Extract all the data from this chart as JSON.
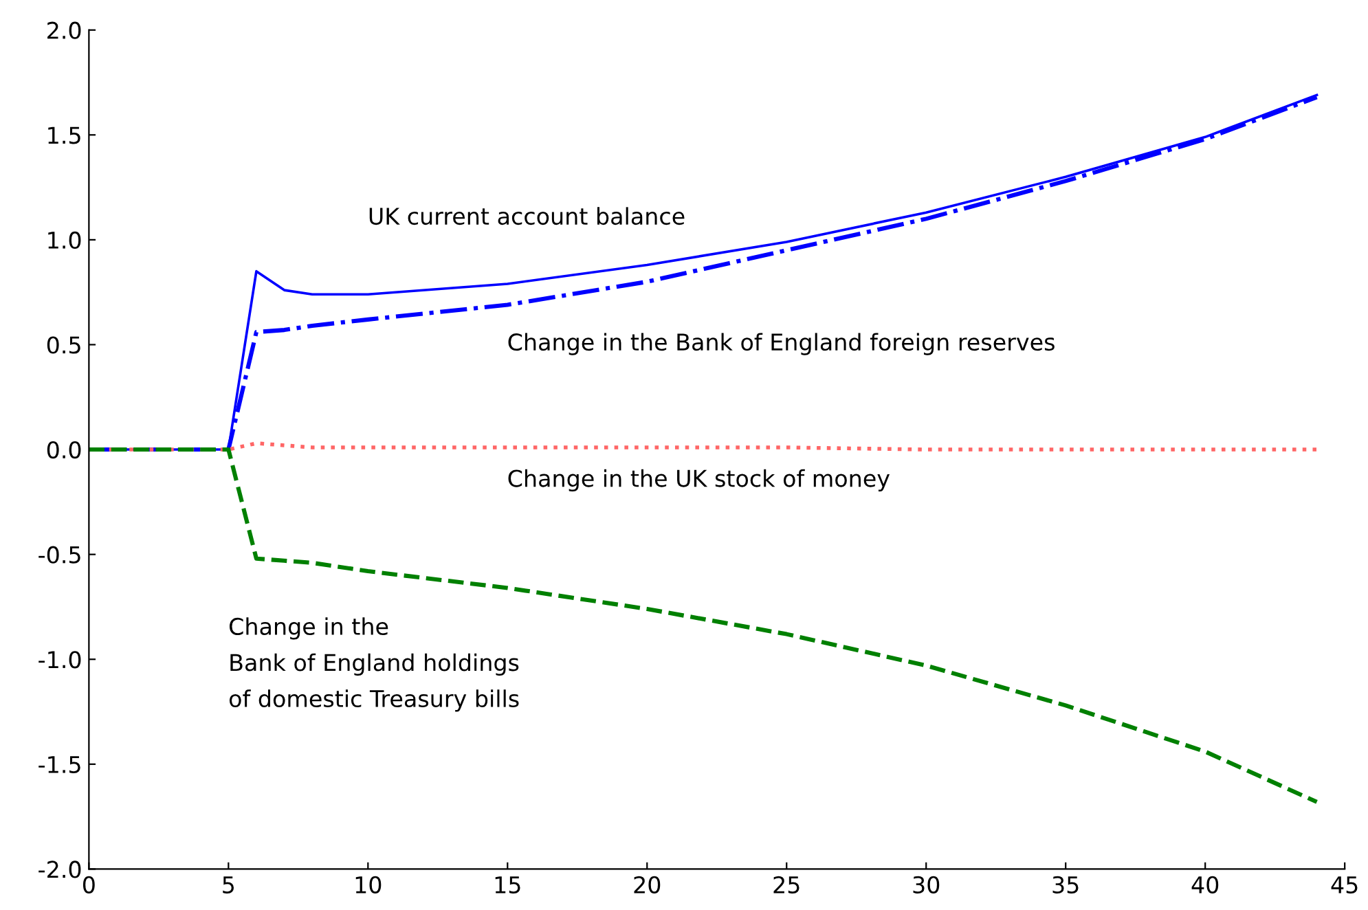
{
  "chart_data": {
    "type": "line",
    "x": [
      0,
      5,
      6,
      7,
      8,
      10,
      15,
      20,
      25,
      30,
      35,
      40,
      44
    ],
    "series": [
      {
        "color": "#0000ff",
        "line_style": "solid",
        "values": [
          0,
          0,
          0.85,
          0.76,
          0.74,
          0.74,
          0.79,
          0.88,
          0.99,
          1.13,
          1.3,
          1.49,
          1.69
        ]
      },
      {
        "color": "#0000ff",
        "line_style": "dashdot",
        "values": [
          0,
          0,
          0.56,
          0.57,
          0.59,
          0.62,
          0.69,
          0.8,
          0.95,
          1.1,
          1.28,
          1.48,
          1.68
        ]
      },
      {
        "color": "#ff6666",
        "line_style": "dotted",
        "values": [
          0,
          0,
          0.03,
          0.02,
          0.01,
          0.01,
          0.01,
          0.01,
          0.01,
          0.0,
          0.0,
          0.0,
          0.0
        ]
      },
      {
        "color": "#008000",
        "line_style": "dashed",
        "values": [
          0,
          0,
          -0.52,
          -0.53,
          -0.54,
          -0.58,
          -0.66,
          -0.76,
          -0.88,
          -1.03,
          -1.22,
          -1.44,
          -1.68
        ]
      }
    ],
    "annotations": [
      "UK current account balance",
      "Change in the Bank of England foreign reserves",
      "Change in the UK stock of money",
      "Change in the\nBank of England holdings\nof domestic Treasury bills"
    ],
    "xlim": [
      0,
      45
    ],
    "ylim": [
      -2.0,
      2.0
    ],
    "xticks": [
      0,
      5,
      10,
      15,
      20,
      25,
      30,
      35,
      40,
      45
    ],
    "yticks": [
      {
        "value": -2,
        "label": "-2.0"
      },
      -1.5,
      {
        "value": -1,
        "label": "-1.0"
      },
      -0.5,
      {
        "value": 0,
        "label": "0.0"
      },
      0.5,
      {
        "value": 1,
        "label": "1.0"
      },
      1.5,
      {
        "value": 2,
        "label": "2.0"
      }
    ],
    "grid": false,
    "legend": false
  }
}
